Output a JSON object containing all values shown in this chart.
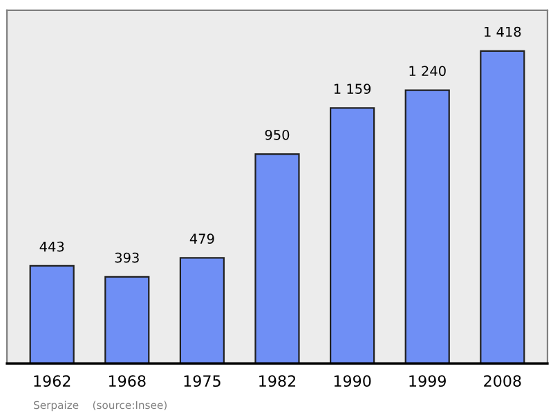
{
  "chart_data": {
    "type": "bar",
    "categories": [
      "1962",
      "1968",
      "1975",
      "1982",
      "1990",
      "1999",
      "2008"
    ],
    "values": [
      443,
      393,
      479,
      950,
      1159,
      1240,
      1418
    ],
    "value_labels": [
      "443",
      "393",
      "479",
      "950",
      "1 159",
      "1 240",
      "1 418"
    ],
    "color": "#6f8ff5",
    "annotations": [
      "Serpaize    (source:Insee)"
    ],
    "grid": false,
    "legend": false
  }
}
